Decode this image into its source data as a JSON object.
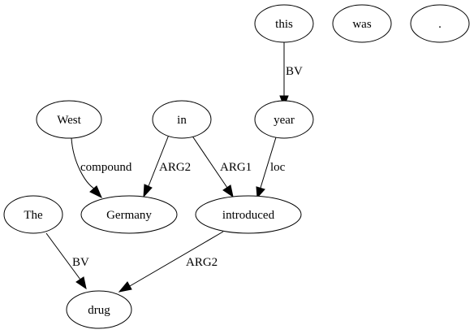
{
  "nodes": [
    {
      "id": "this",
      "label": "this"
    },
    {
      "id": "was",
      "label": "was"
    },
    {
      "id": "period",
      "label": "."
    },
    {
      "id": "west",
      "label": "West"
    },
    {
      "id": "in",
      "label": "in"
    },
    {
      "id": "year",
      "label": "year"
    },
    {
      "id": "the",
      "label": "The"
    },
    {
      "id": "germany",
      "label": "Germany"
    },
    {
      "id": "introduced",
      "label": "introduced"
    },
    {
      "id": "drug",
      "label": "drug"
    }
  ],
  "edges": [
    {
      "from": "this",
      "to": "year",
      "label": "BV"
    },
    {
      "from": "west",
      "to": "germany",
      "label": "compound"
    },
    {
      "from": "in",
      "to": "germany",
      "label": "ARG2"
    },
    {
      "from": "in",
      "to": "introduced",
      "label": "ARG1"
    },
    {
      "from": "year",
      "to": "introduced",
      "label": "loc"
    },
    {
      "from": "the",
      "to": "drug",
      "label": "BV"
    },
    {
      "from": "introduced",
      "to": "drug",
      "label": "ARG2"
    }
  ]
}
